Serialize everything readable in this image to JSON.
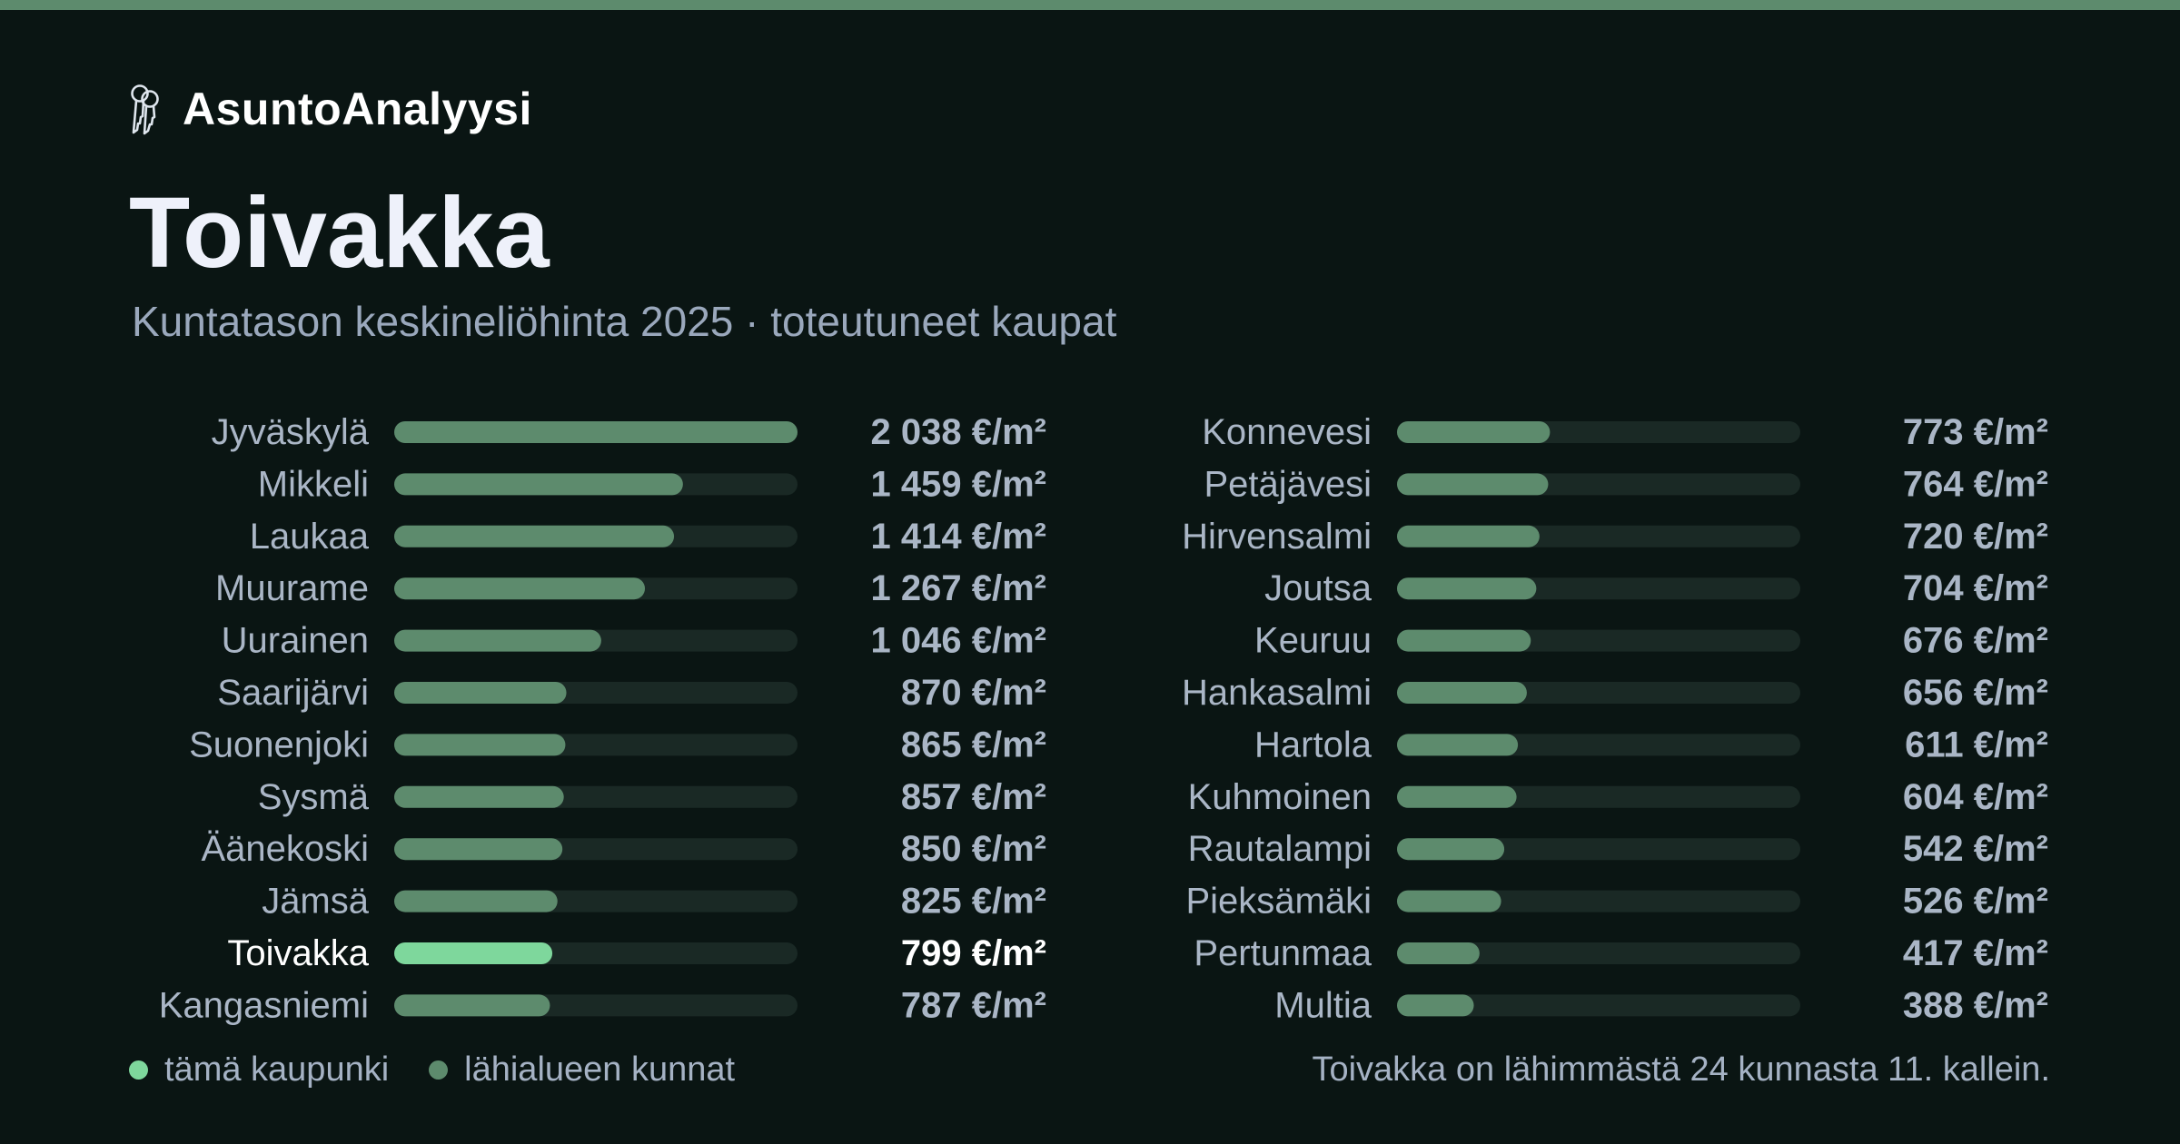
{
  "brand": {
    "name": "AsuntoAnalyysi",
    "icon": "keys-icon"
  },
  "title": "Toivakka",
  "subtitle": "Kuntatason keskineliöhinta 2025 · toteutuneet kaupat",
  "colors": {
    "background": "#0a1513",
    "stripe": "#5d8b6d",
    "bar_other": "#5d8b6d",
    "bar_highlight": "#7ed79c",
    "track": "#1a2925",
    "label_text": "#aab6c6",
    "highlight_text": "#ffffff"
  },
  "legend": {
    "this_city": "tämä kaupunki",
    "nearby": "lähialueen kunnat"
  },
  "footnote": "Toivakka on lähimmästä 24 kunnasta 11. kallein.",
  "chart_data": {
    "type": "bar",
    "orientation": "horizontal",
    "unit": "€/m²",
    "xlim": [
      0,
      2038
    ],
    "highlight": "Toivakka",
    "categories": [
      "Jyväskylä",
      "Mikkeli",
      "Laukaa",
      "Muurame",
      "Uurainen",
      "Saarijärvi",
      "Suonenjoki",
      "Sysmä",
      "Äänekoski",
      "Jämsä",
      "Toivakka",
      "Kangasniemi",
      "Konnevesi",
      "Petäjävesi",
      "Hirvensalmi",
      "Joutsa",
      "Keuruu",
      "Hankasalmi",
      "Hartola",
      "Kuhmoinen",
      "Rautalampi",
      "Pieksämäki",
      "Pertunmaa",
      "Multia"
    ],
    "values": [
      2038,
      1459,
      1414,
      1267,
      1046,
      870,
      865,
      857,
      850,
      825,
      799,
      787,
      773,
      764,
      720,
      704,
      676,
      656,
      611,
      604,
      542,
      526,
      417,
      388
    ],
    "value_labels": [
      "2 038 €/m²",
      "1 459 €/m²",
      "1 414 €/m²",
      "1 267 €/m²",
      "1 046 €/m²",
      "870 €/m²",
      "865 €/m²",
      "857 €/m²",
      "850 €/m²",
      "825 €/m²",
      "799 €/m²",
      "787 €/m²",
      "773 €/m²",
      "764 €/m²",
      "720 €/m²",
      "704 €/m²",
      "676 €/m²",
      "656 €/m²",
      "611 €/m²",
      "604 €/m²",
      "542 €/m²",
      "526 €/m²",
      "417 €/m²",
      "388 €/m²"
    ],
    "grid": false,
    "legend_position": "bottom-left"
  }
}
